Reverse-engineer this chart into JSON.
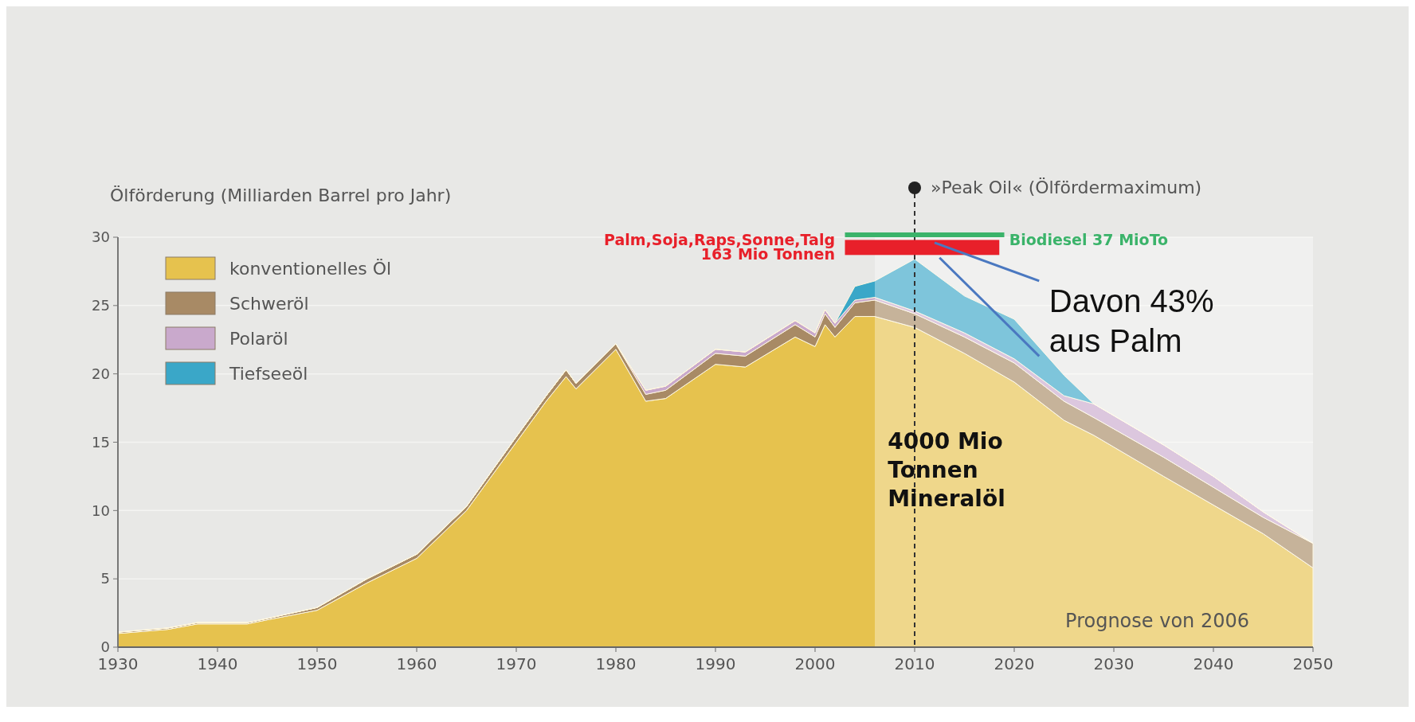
{
  "chart_data": {
    "type": "area",
    "stacked": true,
    "title": "Ölförderung (Milliarden Barrel pro Jahr)",
    "x": [
      1930,
      1935,
      1938,
      1943,
      1945,
      1950,
      1955,
      1960,
      1965,
      1970,
      1973,
      1975,
      1976,
      1980,
      1983,
      1985,
      1990,
      1993,
      1998,
      2000,
      2001,
      2002,
      2004,
      2006,
      2010,
      2015,
      2020,
      2025,
      2028,
      2035,
      2040,
      2045,
      2050
    ],
    "series": [
      {
        "name": "konventionelles Öl",
        "color": "#e6c24e",
        "values": [
          1.0,
          1.3,
          1.7,
          1.7,
          2.0,
          2.7,
          4.7,
          6.5,
          10,
          15,
          18,
          19.8,
          18.9,
          21.8,
          18.0,
          18.2,
          20.7,
          20.5,
          22.7,
          22.0,
          23.6,
          22.7,
          24.2,
          24.2,
          23.4,
          21.5,
          19.4,
          16.6,
          15.5,
          12.5,
          10.4,
          8.3,
          5.8
        ]
      },
      {
        "name": "Schweröl",
        "color": "#a88a65",
        "values": [
          0.1,
          0.1,
          0.1,
          0.1,
          0.1,
          0.2,
          0.3,
          0.3,
          0.3,
          0.4,
          0.4,
          0.5,
          0.4,
          0.4,
          0.5,
          0.6,
          0.8,
          0.8,
          0.9,
          0.7,
          0.8,
          0.7,
          1.0,
          1.2,
          1.0,
          1.2,
          1.4,
          1.4,
          1.3,
          1.4,
          1.3,
          1.2,
          1.8
        ]
      },
      {
        "name": "Polaröl",
        "color": "#c9a9cc",
        "values": [
          0,
          0,
          0,
          0,
          0,
          0,
          0,
          0,
          0,
          0,
          0,
          0,
          0,
          0,
          0.3,
          0.3,
          0.3,
          0.3,
          0.3,
          0.3,
          0.3,
          0.3,
          0.2,
          0.2,
          0.2,
          0.3,
          0.3,
          0.4,
          1.0,
          0.9,
          0.8,
          0.4,
          0
        ]
      },
      {
        "name": "Tiefseeöl",
        "color": "#3aa7c8",
        "values": [
          0,
          0,
          0,
          0,
          0,
          0,
          0,
          0,
          0,
          0,
          0,
          0,
          0,
          0,
          0,
          0,
          0,
          0,
          0,
          0,
          0,
          0,
          1.0,
          1.2,
          3.8,
          2.7,
          2.9,
          1.5,
          0,
          0,
          0,
          0,
          0
        ]
      }
    ],
    "xlim": [
      1930,
      2050
    ],
    "xticks": [
      1930,
      1940,
      1950,
      1960,
      1970,
      1980,
      1990,
      2000,
      2010,
      2020,
      2030,
      2040,
      2050
    ],
    "ylim": [
      0,
      30
    ],
    "yticks": [
      0,
      5,
      10,
      15,
      20,
      25,
      30
    ],
    "grid": "y",
    "legend": "top left",
    "ref_lines": [
      {
        "axis": "x",
        "value": 2010,
        "label": "»Peak Oil« (Ölfördermaximum)",
        "line_style": "dashed",
        "color": "#333333"
      }
    ],
    "bands": [
      {
        "axis": "x",
        "from": 2006,
        "to": 2050,
        "label": "Prognose von 2006",
        "color": "#ffffff"
      }
    ],
    "annotations": [
      "Palm,Soja,Raps,Sonne,Talg\n163 Mio Tonnen",
      "Biodiesel 37 MioTo",
      "Davon 43%\naus Palm",
      "4000 Mio\nTonnen\nMineralöl"
    ]
  }
}
